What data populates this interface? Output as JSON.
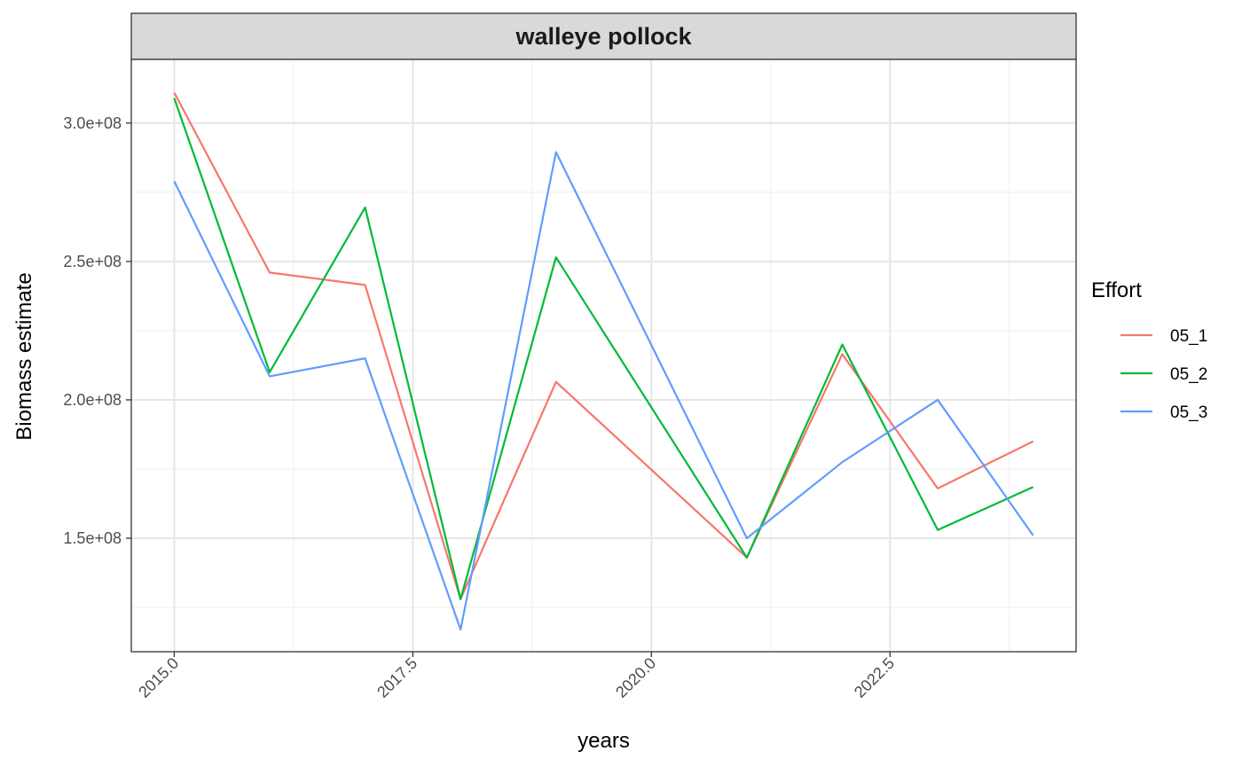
{
  "chart_data": {
    "type": "line",
    "facet_title": "walleye pollock",
    "xlabel": "years",
    "ylabel": "Biomass estimate",
    "legend_title": "Effort",
    "legend_position": "right",
    "grid": true,
    "xlim": [
      2014.55,
      2024.45
    ],
    "ylim": [
      109000000,
      323000000
    ],
    "x_ticks": [
      2015.0,
      2017.5,
      2020.0,
      2022.5
    ],
    "x_tick_labels": [
      "2015.0",
      "2017.5",
      "2020.0",
      "2022.5"
    ],
    "y_ticks": [
      150000000,
      200000000,
      250000000,
      300000000
    ],
    "y_tick_labels": [
      "1.5e+08",
      "2.0e+08",
      "2.5e+08",
      "3.0e+08"
    ],
    "x": [
      2015,
      2016,
      2017,
      2018,
      2019,
      2021,
      2022,
      2023,
      2024
    ],
    "series": [
      {
        "name": "05_1",
        "color": "#F8766D",
        "values": [
          311000000,
          246000000,
          241500000,
          128000000,
          206500000,
          143000000,
          216500000,
          168000000,
          185000000
        ]
      },
      {
        "name": "05_2",
        "color": "#00BA38",
        "values": [
          309000000,
          210000000,
          269500000,
          128000000,
          251500000,
          143000000,
          220000000,
          153000000,
          168500000
        ]
      },
      {
        "name": "05_3",
        "color": "#619CFF",
        "values": [
          279000000,
          208500000,
          215000000,
          117000000,
          289500000,
          150000000,
          177500000,
          200000000,
          151000000
        ]
      }
    ]
  }
}
